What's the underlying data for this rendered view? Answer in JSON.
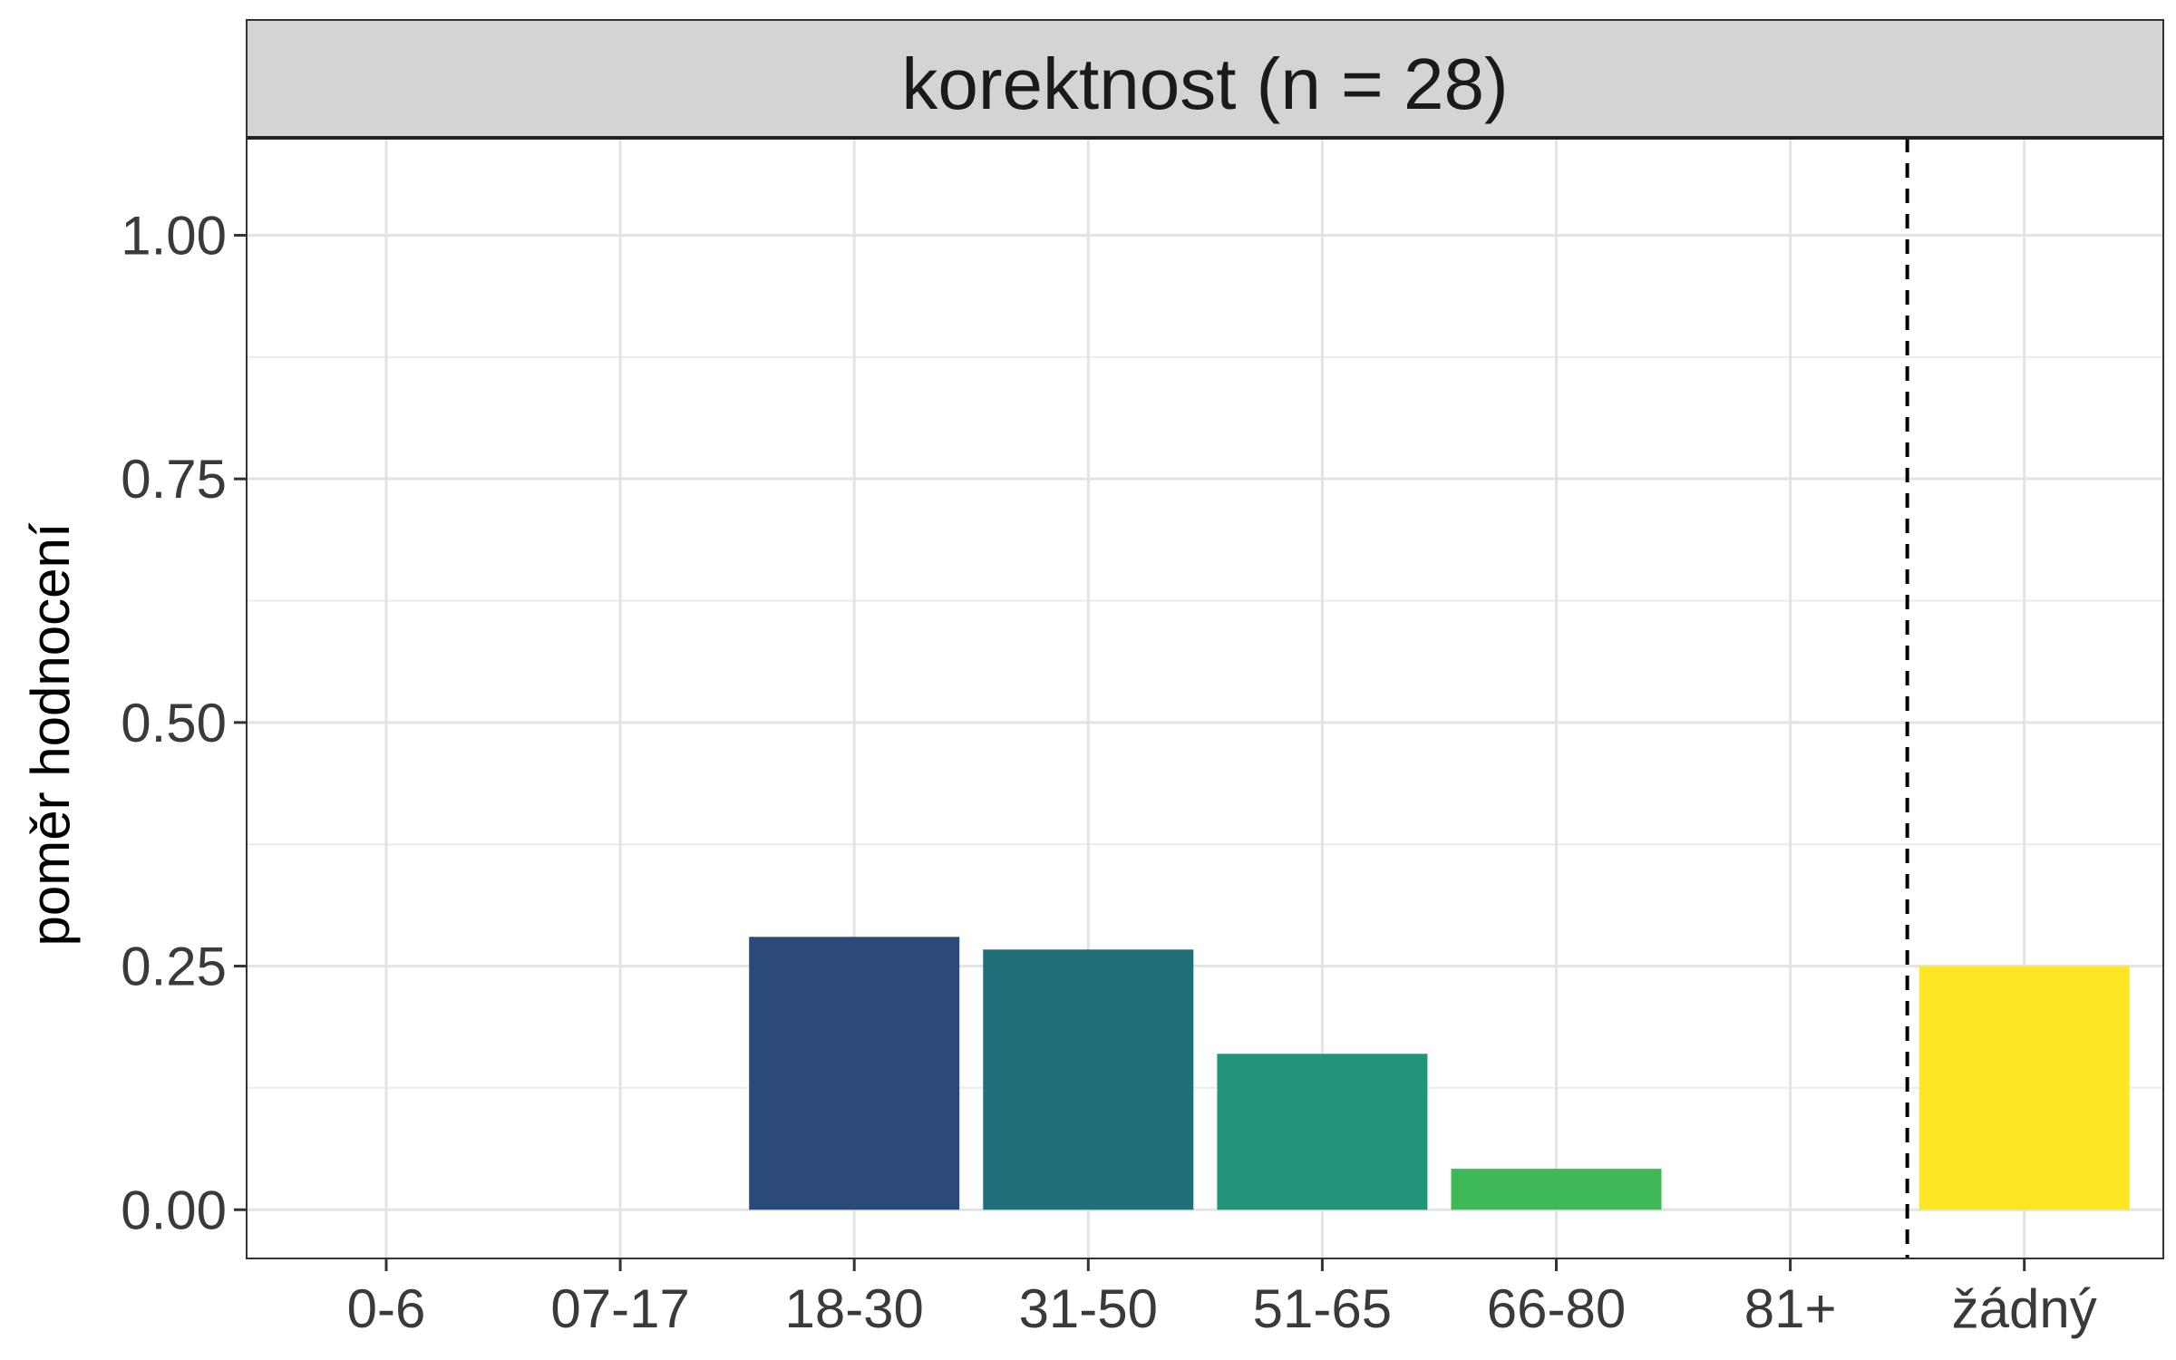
{
  "chart_data": {
    "type": "bar",
    "title": "korektnost (n = 28)",
    "xlabel": "",
    "ylabel": "poměr hodnocení",
    "categories": [
      "0-6",
      "07-17",
      "18-30",
      "31-50",
      "51-65",
      "66-80",
      "81+",
      "žádný"
    ],
    "values": [
      0,
      0,
      0.28,
      0.267,
      0.16,
      0.042,
      0,
      0.25
    ],
    "colors": [
      "#440154",
      "#46337E",
      "#2B4A7A",
      "#206E7A",
      "#21947A",
      "#3FB957",
      "#8FD744",
      "#FDE725"
    ],
    "ylim": [
      -0.05,
      1.1
    ],
    "yticks": [
      0.0,
      0.25,
      0.5,
      0.75,
      1.0
    ],
    "ytick_labels": [
      "0.00",
      "0.25",
      "0.50",
      "0.75",
      "1.00"
    ],
    "reference_line": {
      "after_category": "81+",
      "style": "dashed"
    },
    "grid": true,
    "legend": "none"
  }
}
